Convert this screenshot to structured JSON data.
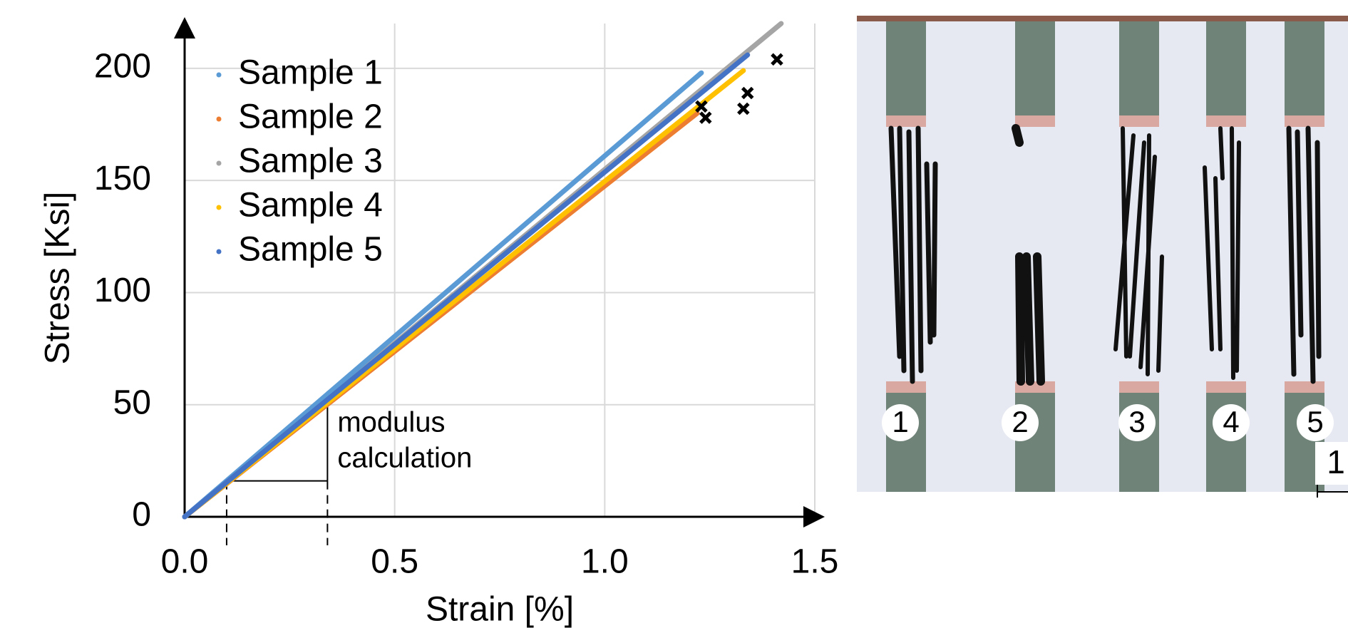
{
  "chart_data": {
    "type": "line",
    "xlabel": "Strain [%]",
    "ylabel": "Stress [Ksi]",
    "xlim": [
      0,
      1.5
    ],
    "ylim": [
      0,
      220
    ],
    "xticks": [
      {
        "value": 0,
        "label": "0.0"
      },
      0.5,
      {
        "value": 1,
        "label": "1.0"
      },
      1.5
    ],
    "yticks": [
      0,
      50,
      100,
      150,
      200
    ],
    "grid": true,
    "legend": "upper left",
    "series": [
      {
        "name": "Sample 1",
        "color": "#5b9bd5",
        "x": [
          0,
          1.23
        ],
        "values": [
          0,
          198
        ]
      },
      {
        "name": "Sample 2",
        "color": "#ed7d31",
        "x": [
          0,
          1.22
        ],
        "values": [
          0,
          180
        ]
      },
      {
        "name": "Sample 3",
        "color": "#a5a5a5",
        "x": [
          0,
          1.42
        ],
        "values": [
          0,
          220
        ]
      },
      {
        "name": "Sample 4",
        "color": "#ffc000",
        "x": [
          0,
          1.33
        ],
        "values": [
          0,
          199
        ]
      },
      {
        "name": "Sample 5",
        "color": "#4472c4",
        "x": [
          0,
          1.34
        ],
        "values": [
          0,
          206
        ]
      }
    ],
    "failure_points": {
      "x": [
        1.23,
        1.24,
        1.33,
        1.34,
        1.41
      ],
      "values": [
        183,
        178,
        182,
        189,
        204
      ]
    },
    "modulus_annotation": {
      "text": [
        "modulus",
        "calculation"
      ],
      "x": [
        0.1,
        0.34
      ],
      "values": [
        16,
        56
      ]
    }
  },
  "photo": {
    "specimen_labels": [
      "1",
      "2",
      "3",
      "4",
      "5"
    ],
    "scale_label": "1"
  }
}
